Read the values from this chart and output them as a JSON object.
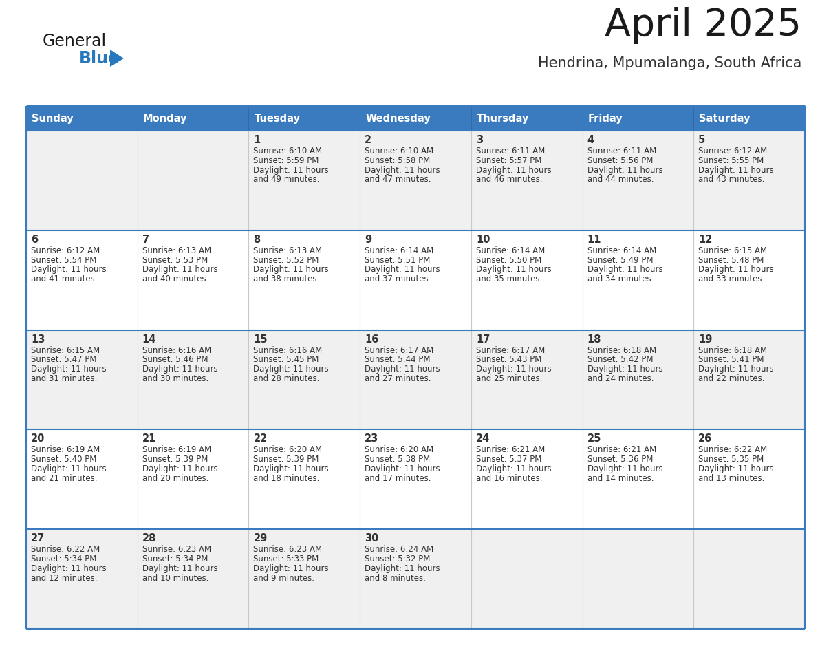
{
  "title": "April 2025",
  "subtitle": "Hendrina, Mpumalanga, South Africa",
  "days_of_week": [
    "Sunday",
    "Monday",
    "Tuesday",
    "Wednesday",
    "Thursday",
    "Friday",
    "Saturday"
  ],
  "header_bg": "#3a7bbf",
  "header_text_color": "#ffffff",
  "row_bg": [
    "#f0f0f0",
    "#ffffff",
    "#f0f0f0",
    "#ffffff",
    "#f0f0f0"
  ],
  "border_color": "#3a7bbf",
  "separator_color": "#aaaaaa",
  "text_color": "#333333",
  "logo_general_color": "#1a1a1a",
  "logo_blue_color": "#2878be",
  "calendar_data": [
    [
      {
        "day": null,
        "sunrise": null,
        "sunset": null,
        "daylight": null
      },
      {
        "day": null,
        "sunrise": null,
        "sunset": null,
        "daylight": null
      },
      {
        "day": 1,
        "sunrise": "6:10 AM",
        "sunset": "5:59 PM",
        "daylight": "11 hours and 49 minutes."
      },
      {
        "day": 2,
        "sunrise": "6:10 AM",
        "sunset": "5:58 PM",
        "daylight": "11 hours and 47 minutes."
      },
      {
        "day": 3,
        "sunrise": "6:11 AM",
        "sunset": "5:57 PM",
        "daylight": "11 hours and 46 minutes."
      },
      {
        "day": 4,
        "sunrise": "6:11 AM",
        "sunset": "5:56 PM",
        "daylight": "11 hours and 44 minutes."
      },
      {
        "day": 5,
        "sunrise": "6:12 AM",
        "sunset": "5:55 PM",
        "daylight": "11 hours and 43 minutes."
      }
    ],
    [
      {
        "day": 6,
        "sunrise": "6:12 AM",
        "sunset": "5:54 PM",
        "daylight": "11 hours and 41 minutes."
      },
      {
        "day": 7,
        "sunrise": "6:13 AM",
        "sunset": "5:53 PM",
        "daylight": "11 hours and 40 minutes."
      },
      {
        "day": 8,
        "sunrise": "6:13 AM",
        "sunset": "5:52 PM",
        "daylight": "11 hours and 38 minutes."
      },
      {
        "day": 9,
        "sunrise": "6:14 AM",
        "sunset": "5:51 PM",
        "daylight": "11 hours and 37 minutes."
      },
      {
        "day": 10,
        "sunrise": "6:14 AM",
        "sunset": "5:50 PM",
        "daylight": "11 hours and 35 minutes."
      },
      {
        "day": 11,
        "sunrise": "6:14 AM",
        "sunset": "5:49 PM",
        "daylight": "11 hours and 34 minutes."
      },
      {
        "day": 12,
        "sunrise": "6:15 AM",
        "sunset": "5:48 PM",
        "daylight": "11 hours and 33 minutes."
      }
    ],
    [
      {
        "day": 13,
        "sunrise": "6:15 AM",
        "sunset": "5:47 PM",
        "daylight": "11 hours and 31 minutes."
      },
      {
        "day": 14,
        "sunrise": "6:16 AM",
        "sunset": "5:46 PM",
        "daylight": "11 hours and 30 minutes."
      },
      {
        "day": 15,
        "sunrise": "6:16 AM",
        "sunset": "5:45 PM",
        "daylight": "11 hours and 28 minutes."
      },
      {
        "day": 16,
        "sunrise": "6:17 AM",
        "sunset": "5:44 PM",
        "daylight": "11 hours and 27 minutes."
      },
      {
        "day": 17,
        "sunrise": "6:17 AM",
        "sunset": "5:43 PM",
        "daylight": "11 hours and 25 minutes."
      },
      {
        "day": 18,
        "sunrise": "6:18 AM",
        "sunset": "5:42 PM",
        "daylight": "11 hours and 24 minutes."
      },
      {
        "day": 19,
        "sunrise": "6:18 AM",
        "sunset": "5:41 PM",
        "daylight": "11 hours and 22 minutes."
      }
    ],
    [
      {
        "day": 20,
        "sunrise": "6:19 AM",
        "sunset": "5:40 PM",
        "daylight": "11 hours and 21 minutes."
      },
      {
        "day": 21,
        "sunrise": "6:19 AM",
        "sunset": "5:39 PM",
        "daylight": "11 hours and 20 minutes."
      },
      {
        "day": 22,
        "sunrise": "6:20 AM",
        "sunset": "5:39 PM",
        "daylight": "11 hours and 18 minutes."
      },
      {
        "day": 23,
        "sunrise": "6:20 AM",
        "sunset": "5:38 PM",
        "daylight": "11 hours and 17 minutes."
      },
      {
        "day": 24,
        "sunrise": "6:21 AM",
        "sunset": "5:37 PM",
        "daylight": "11 hours and 16 minutes."
      },
      {
        "day": 25,
        "sunrise": "6:21 AM",
        "sunset": "5:36 PM",
        "daylight": "11 hours and 14 minutes."
      },
      {
        "day": 26,
        "sunrise": "6:22 AM",
        "sunset": "5:35 PM",
        "daylight": "11 hours and 13 minutes."
      }
    ],
    [
      {
        "day": 27,
        "sunrise": "6:22 AM",
        "sunset": "5:34 PM",
        "daylight": "11 hours and 12 minutes."
      },
      {
        "day": 28,
        "sunrise": "6:23 AM",
        "sunset": "5:34 PM",
        "daylight": "11 hours and 10 minutes."
      },
      {
        "day": 29,
        "sunrise": "6:23 AM",
        "sunset": "5:33 PM",
        "daylight": "11 hours and 9 minutes."
      },
      {
        "day": 30,
        "sunrise": "6:24 AM",
        "sunset": "5:32 PM",
        "daylight": "11 hours and 8 minutes."
      },
      {
        "day": null,
        "sunrise": null,
        "sunset": null,
        "daylight": null
      },
      {
        "day": null,
        "sunrise": null,
        "sunset": null,
        "daylight": null
      },
      {
        "day": null,
        "sunrise": null,
        "sunset": null,
        "daylight": null
      }
    ]
  ]
}
